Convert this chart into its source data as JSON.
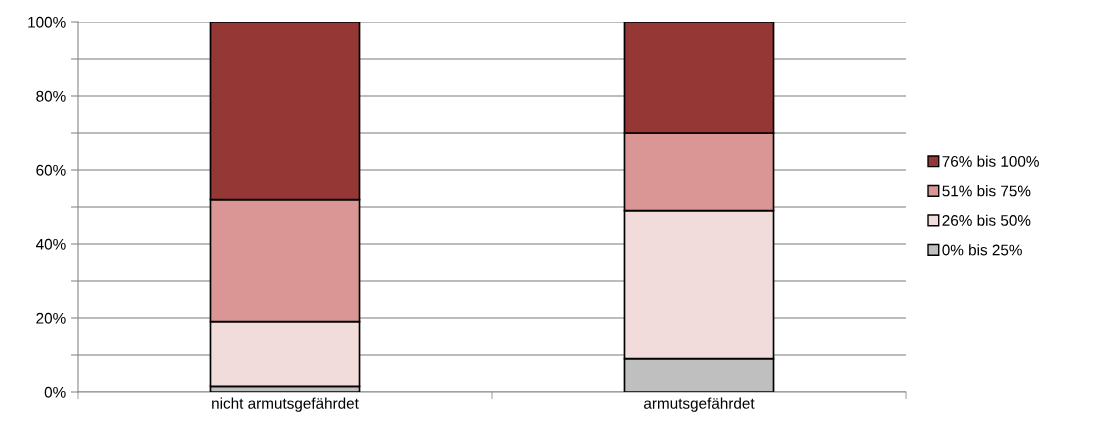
{
  "chart_data": {
    "type": "bar",
    "stacked": true,
    "categories": [
      "nicht armutsgefährdet",
      "armutsgefährdet"
    ],
    "series": [
      {
        "name": "0% bis 25%",
        "color": "#bfbfbf",
        "values": [
          1.5,
          9
        ]
      },
      {
        "name": "26% bis 50%",
        "color": "#f2dcdb",
        "values": [
          17.5,
          40
        ]
      },
      {
        "name": "51% bis 75%",
        "color": "#d99694",
        "values": [
          33,
          21
        ]
      },
      {
        "name": "76% bis 100%",
        "color": "#953735",
        "values": [
          48,
          30
        ]
      }
    ],
    "ylim": [
      0,
      100
    ],
    "yticks": [
      {
        "value": 0,
        "label": "0%"
      },
      {
        "value": 10,
        "label": null
      },
      {
        "value": 20,
        "label": "20%"
      },
      {
        "value": 30,
        "label": null
      },
      {
        "value": 40,
        "label": "40%"
      },
      {
        "value": 50,
        "label": null
      },
      {
        "value": 60,
        "label": "60%"
      },
      {
        "value": 70,
        "label": null
      },
      {
        "value": 80,
        "label": "80%"
      },
      {
        "value": 90,
        "label": null
      },
      {
        "value": 100,
        "label": "100%"
      }
    ],
    "grid": "y",
    "legend": "right"
  }
}
